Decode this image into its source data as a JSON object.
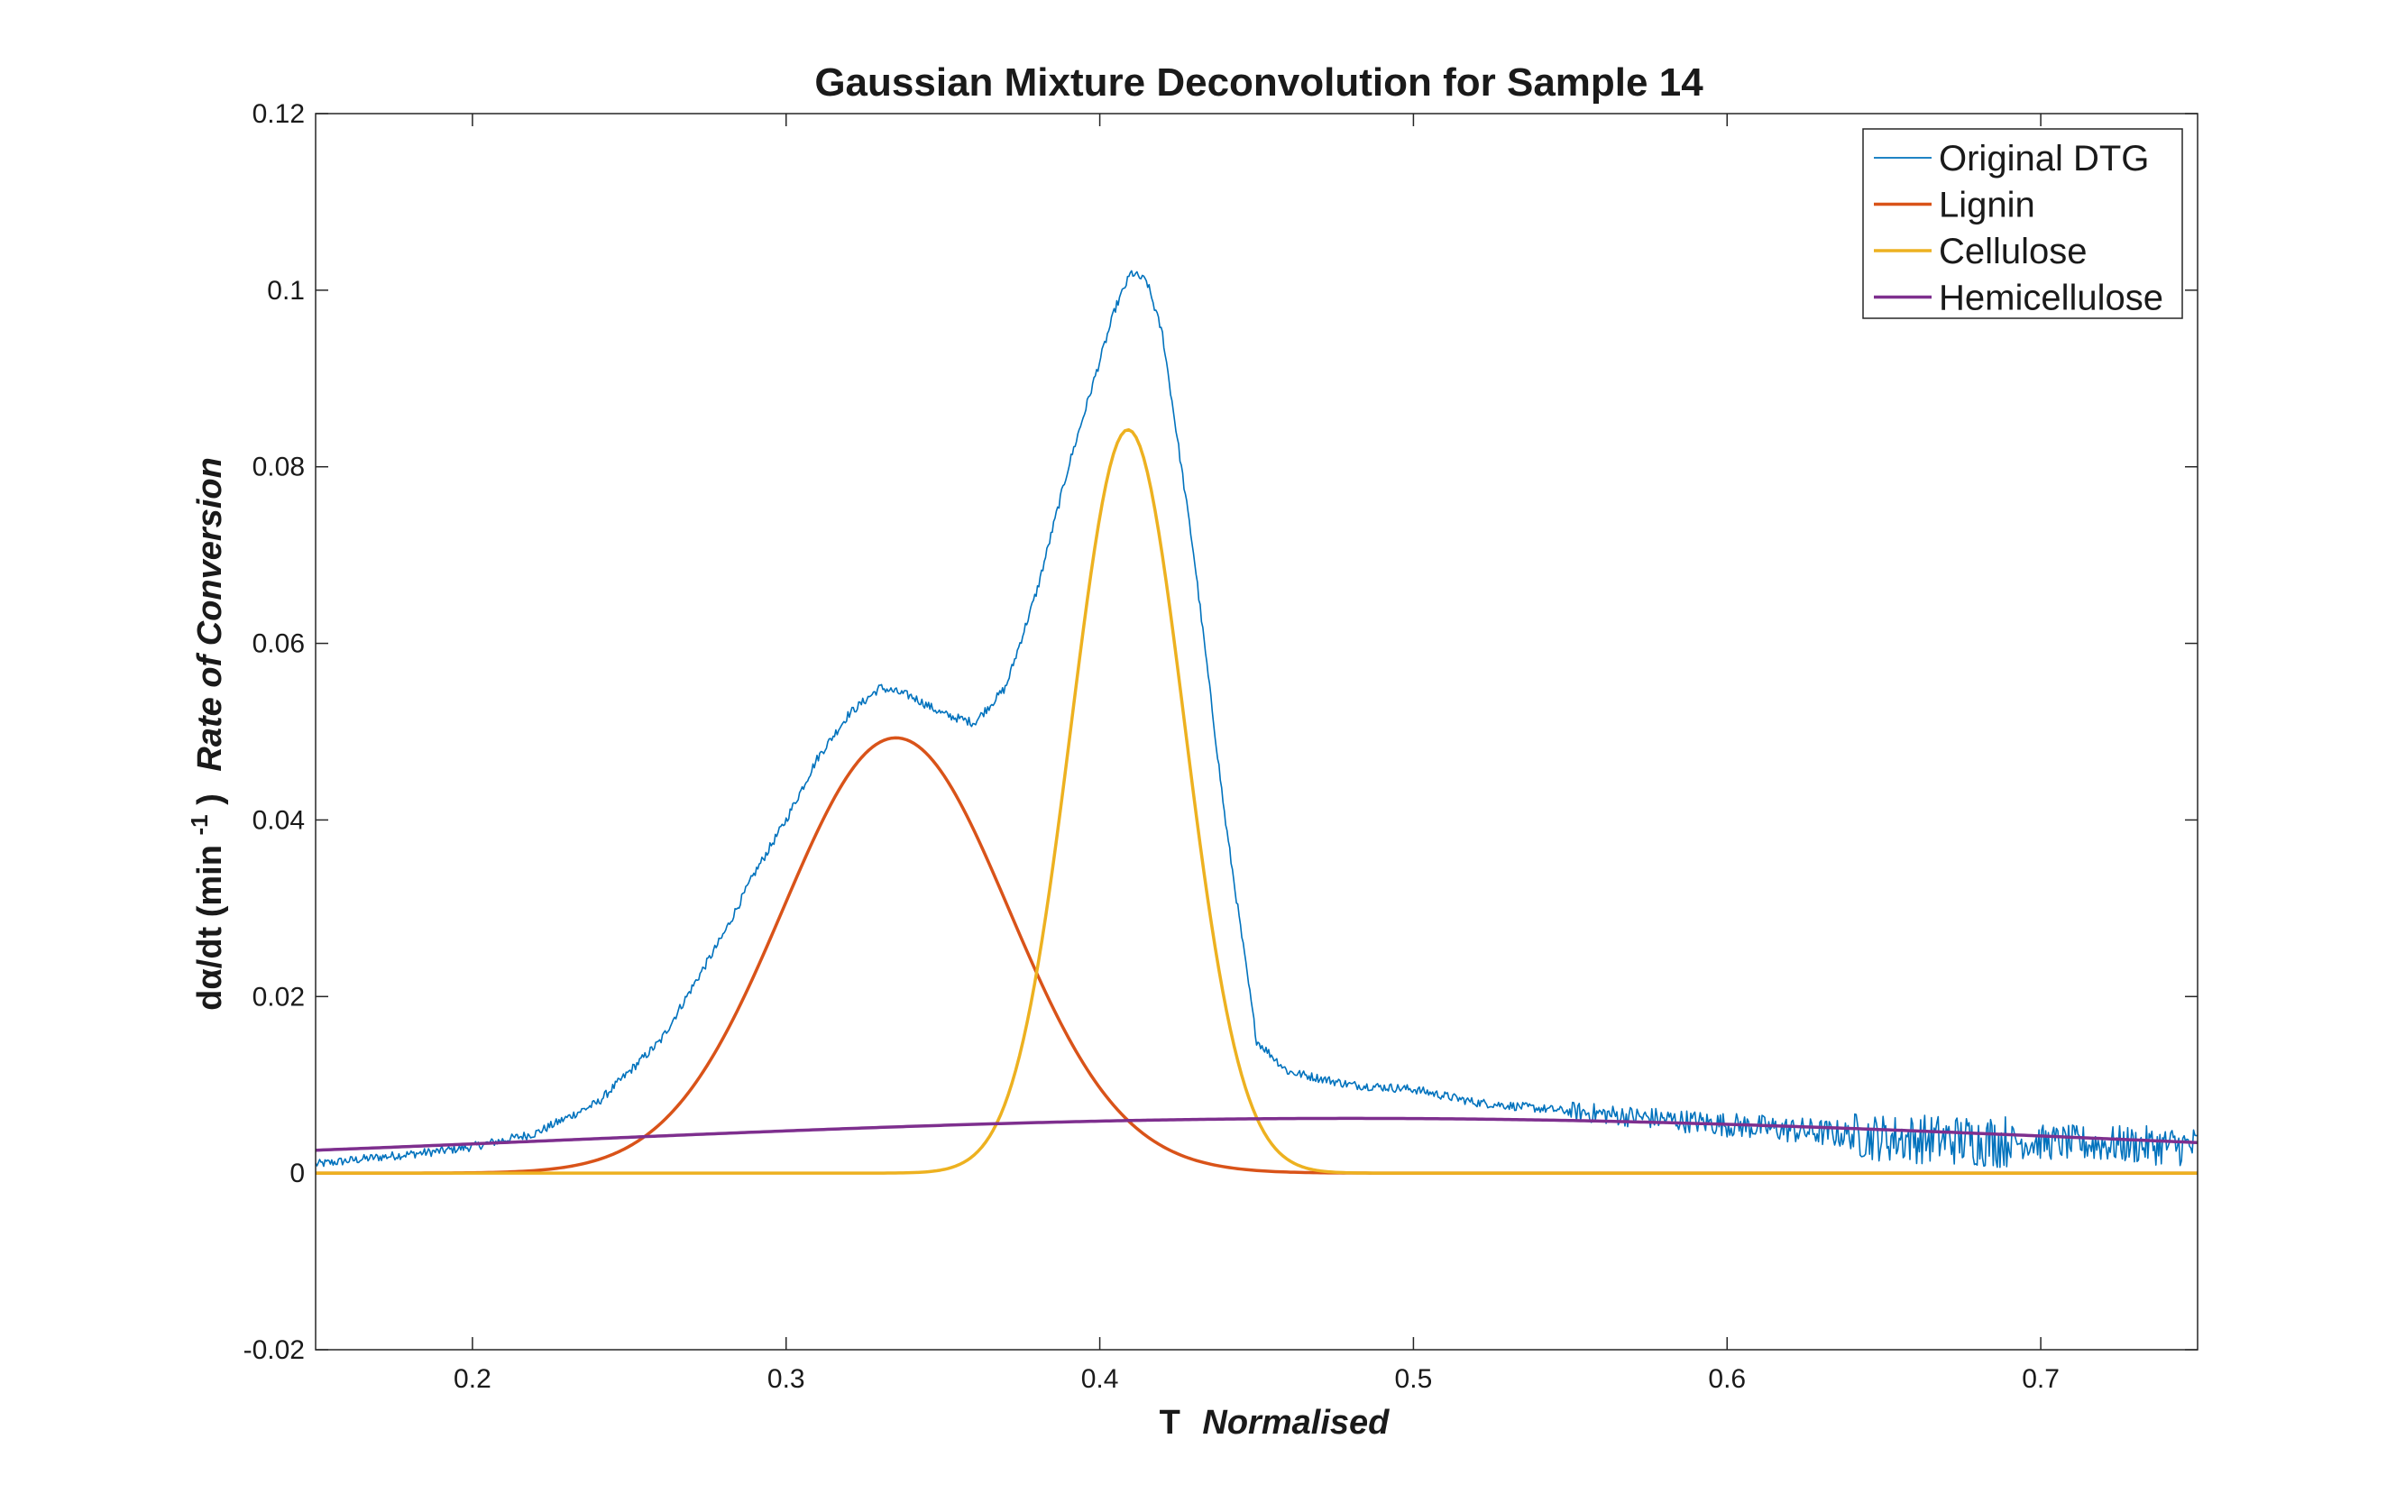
{
  "chart_data": {
    "type": "line",
    "title": "Gaussian Mixture Deconvolution for Sample 14",
    "xlabel": {
      "main": "T",
      "emphasis": "Normalised"
    },
    "ylabel": {
      "prefix": "dα/dt (min",
      "superscript": "-1",
      "suffix": ")",
      "emphasis": "Rate of Conversion"
    },
    "xlim": [
      0.15,
      0.75
    ],
    "ylim": [
      -0.02,
      0.12
    ],
    "x_ticks": [
      0.2,
      0.3,
      0.4,
      0.5,
      0.6,
      0.7
    ],
    "x_tick_labels": [
      "0.2",
      "0.3",
      "0.4",
      "0.5",
      "0.6",
      "0.7"
    ],
    "y_ticks": [
      -0.02,
      0,
      0.02,
      0.04,
      0.06,
      0.08,
      0.1,
      0.12
    ],
    "y_tick_labels": [
      "-0.02",
      "0",
      "0.02",
      "0.04",
      "0.06",
      "0.08",
      "0.1",
      "0.12"
    ],
    "grid": false,
    "legend_position": "top-right",
    "series": [
      {
        "name": "Original DTG",
        "color": "#0072BD",
        "x": [
          0.15,
          0.17,
          0.19,
          0.2,
          0.22,
          0.24,
          0.26,
          0.28,
          0.29,
          0.3,
          0.31,
          0.32,
          0.33,
          0.34,
          0.35,
          0.36,
          0.37,
          0.38,
          0.39,
          0.4,
          0.405,
          0.41,
          0.415,
          0.42,
          0.43,
          0.44,
          0.45,
          0.46,
          0.48,
          0.5,
          0.52,
          0.55,
          0.6,
          0.65,
          0.7,
          0.75
        ],
        "y": [
          0.001,
          0.0018,
          0.0025,
          0.003,
          0.0045,
          0.008,
          0.015,
          0.027,
          0.034,
          0.04,
          0.047,
          0.052,
          0.055,
          0.054,
          0.052,
          0.051,
          0.055,
          0.066,
          0.08,
          0.092,
          0.098,
          0.102,
          0.101,
          0.095,
          0.07,
          0.04,
          0.015,
          0.0115,
          0.01,
          0.0095,
          0.008,
          0.007,
          0.0055,
          0.004,
          0.0035,
          0.003
        ]
      },
      {
        "name": "Lignin",
        "color": "#D95319",
        "gaussian": {
          "amplitude": 0.0493,
          "center": 0.335,
          "sigma": 0.036
        }
      },
      {
        "name": "Cellulose",
        "color": "#EDB120",
        "gaussian": {
          "amplitude": 0.0842,
          "center": 0.409,
          "sigma": 0.018
        }
      },
      {
        "name": "Hemicellulose",
        "color": "#7E2F8E",
        "gaussian": {
          "amplitude": 0.0062,
          "center": 0.48,
          "sigma": 0.25
        }
      }
    ]
  }
}
